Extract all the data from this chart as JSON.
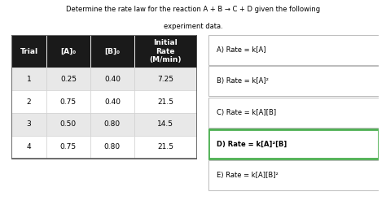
{
  "title_line1": "Determine the rate law for the reaction A + B → C + D given the following",
  "title_line2": "experiment data.",
  "table_headers": [
    "Trial",
    "[A]₀",
    "[B]₀",
    "Initial\nRate\n(M/min)"
  ],
  "table_data": [
    [
      "1",
      "0.25",
      "0.40",
      "7.25"
    ],
    [
      "2",
      "0.75",
      "0.40",
      "21.5"
    ],
    [
      "3",
      "0.50",
      "0.80",
      "14.5"
    ],
    [
      "4",
      "0.75",
      "0.80",
      "21.5"
    ]
  ],
  "options": [
    {
      "label": "A) Rate = k[A]",
      "bold": false,
      "selected": false
    },
    {
      "label": "B) Rate = k[A]²",
      "bold": false,
      "selected": false
    },
    {
      "label": "C) Rate = k[A][B]",
      "bold": false,
      "selected": false
    },
    {
      "label": "D) Rate = k[A]²[B]",
      "bold": true,
      "selected": true
    },
    {
      "label": "E) Rate = k[A][B]²",
      "bold": false,
      "selected": false
    }
  ],
  "header_bg": "#1a1a1a",
  "header_fg": "#ffffff",
  "row_bg_odd": "#e8e8e8",
  "row_bg_even": "#ffffff",
  "selected_border": "#4caf50",
  "bg_color": "#ffffff",
  "title_fontsize": 6.0,
  "cell_fontsize": 6.5,
  "option_fontsize": 6.0
}
